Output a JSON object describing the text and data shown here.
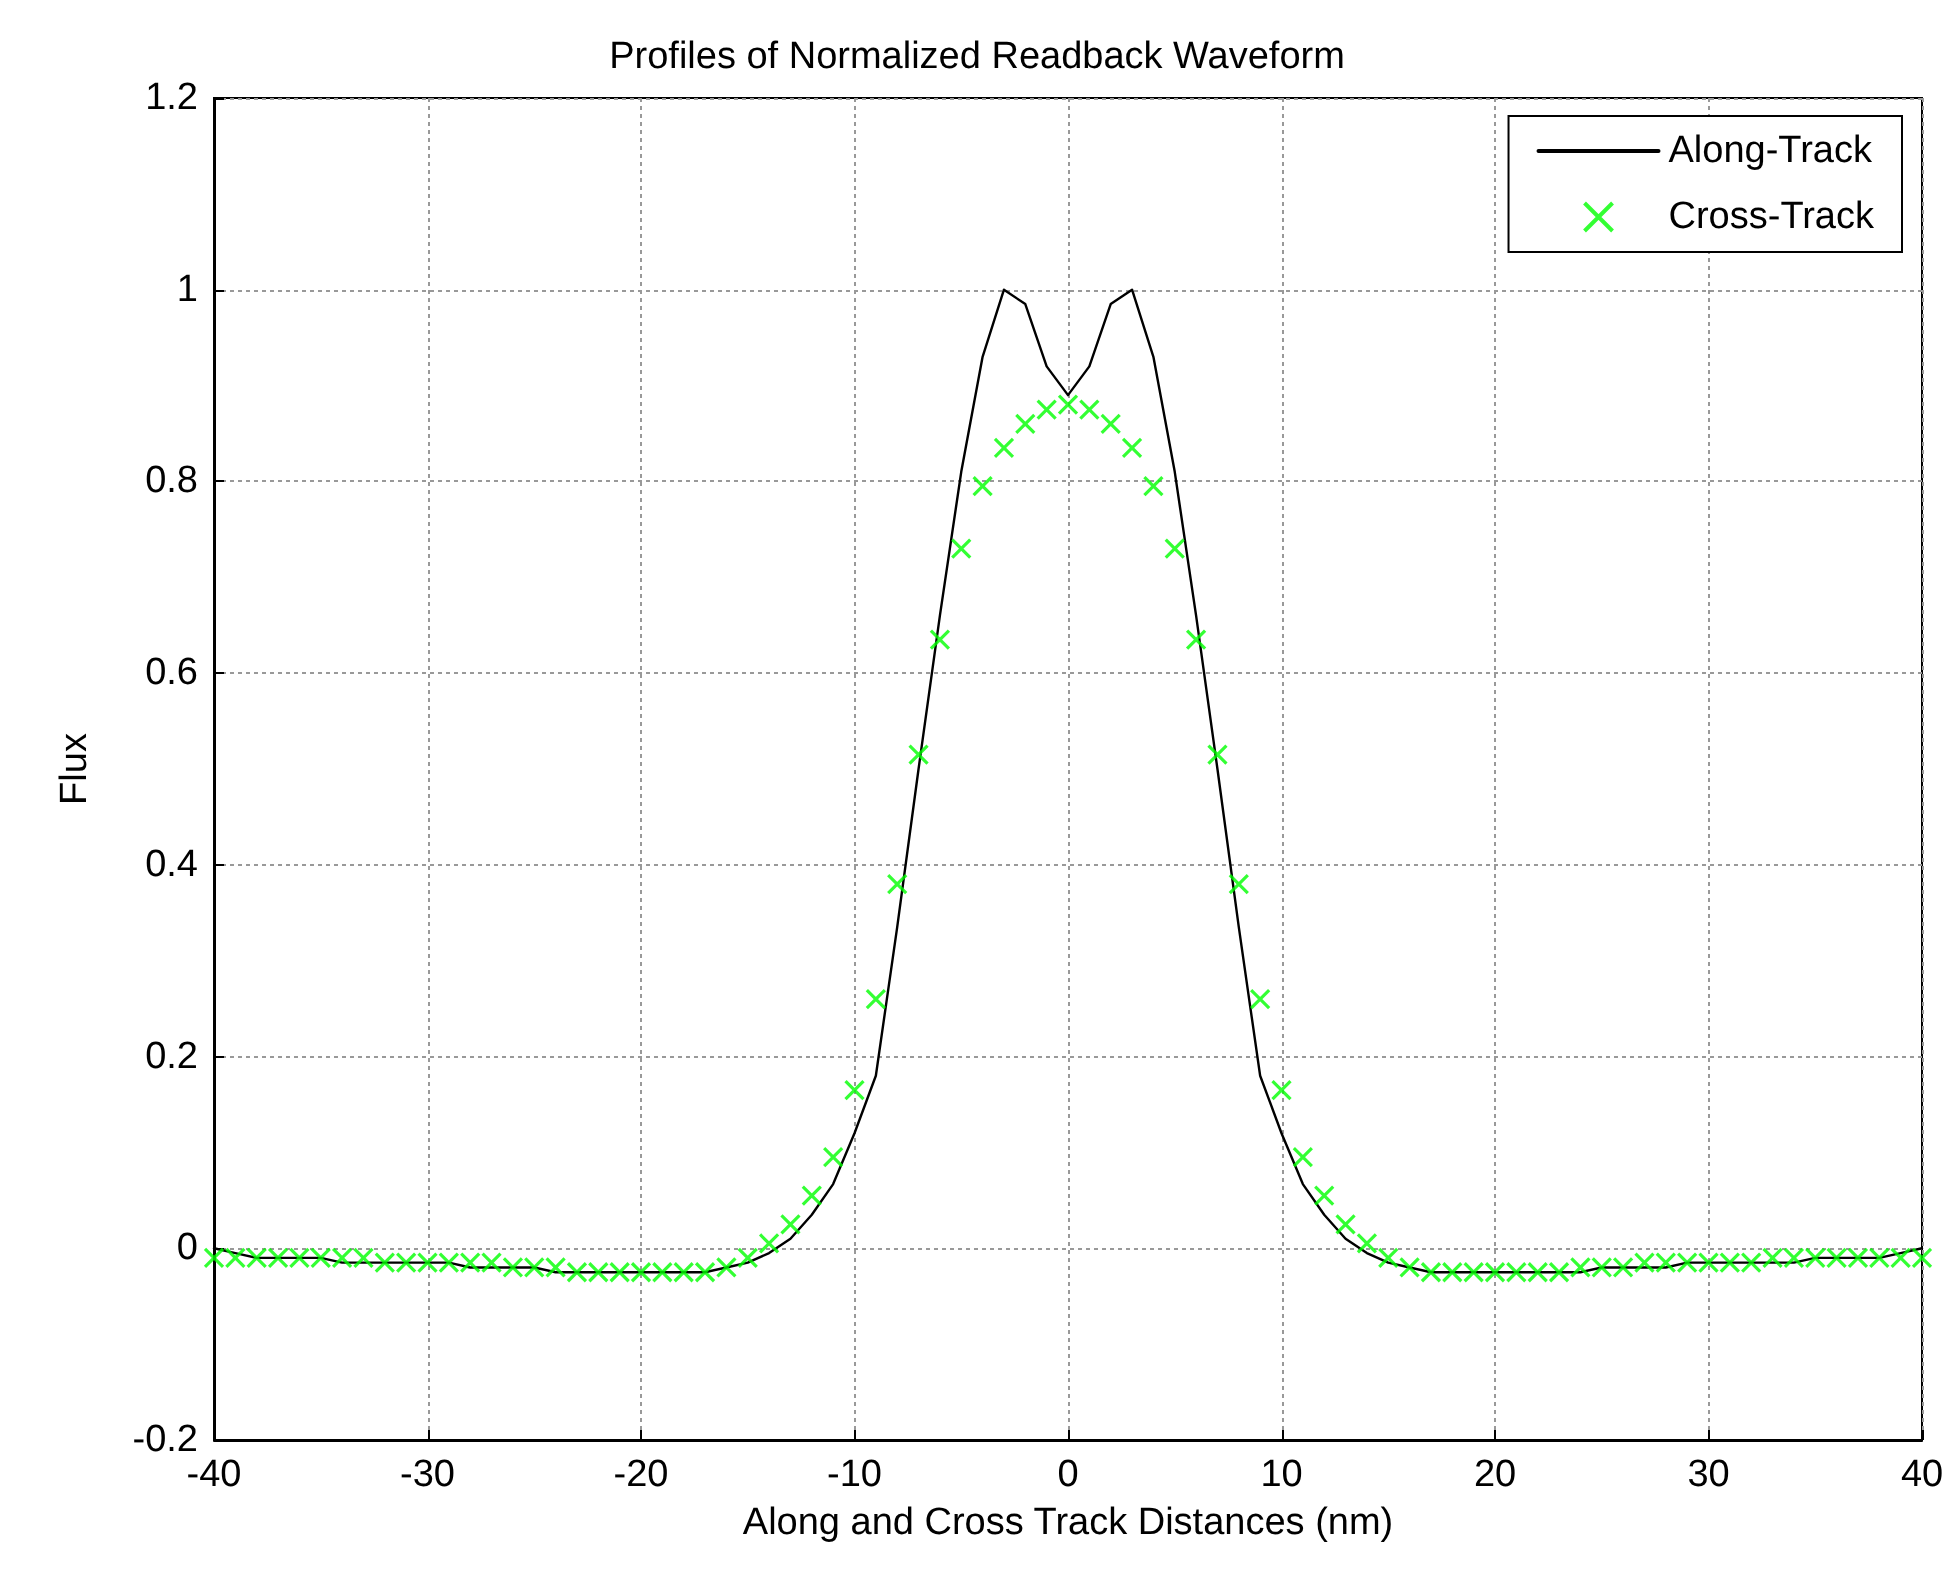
{
  "chart_data": {
    "type": "line",
    "title": "Profiles of Normalized Readback Waveform",
    "xlabel": "Along and Cross Track Distances (nm)",
    "ylabel": "Flux",
    "xlim": [
      -40,
      40
    ],
    "xticks": [
      -40,
      -30,
      -20,
      -10,
      0,
      10,
      20,
      30,
      40
    ],
    "ylim": [
      -0.2,
      1.2
    ],
    "yticks": [
      -0.2,
      0,
      0.2,
      0.4,
      0.6,
      0.8,
      1,
      1.2
    ],
    "grid": true,
    "legend": "top right",
    "series": [
      {
        "name": "Along-Track",
        "color": "#000000",
        "marker": "none",
        "line_style": "solid",
        "x": [
          -40,
          -39,
          -38,
          -37,
          -36,
          -35,
          -34,
          -33,
          -32,
          -31,
          -30,
          -29,
          -28,
          -27,
          -26,
          -25,
          -24,
          -23,
          -22,
          -21,
          -20,
          -19,
          -18,
          -17,
          -16,
          -15,
          -14,
          -13,
          -12,
          -11,
          -10,
          -9,
          -8,
          -7,
          -6,
          -5,
          -4,
          -3,
          -2,
          -1,
          0,
          1,
          2,
          3,
          4,
          5,
          6,
          7,
          8,
          9,
          10,
          11,
          12,
          13,
          14,
          15,
          16,
          17,
          18,
          19,
          20,
          21,
          22,
          23,
          24,
          25,
          26,
          27,
          28,
          29,
          30,
          31,
          32,
          33,
          34,
          35,
          36,
          37,
          38,
          39,
          40
        ],
        "values": [
          0,
          -0.005,
          -0.01,
          -0.01,
          -0.01,
          -0.01,
          -0.015,
          -0.015,
          -0.015,
          -0.015,
          -0.015,
          -0.015,
          -0.02,
          -0.02,
          -0.02,
          -0.02,
          -0.025,
          -0.025,
          -0.025,
          -0.025,
          -0.025,
          -0.025,
          -0.025,
          -0.025,
          -0.02,
          -0.015,
          -0.005,
          0.01,
          0.035,
          0.067,
          0.12,
          0.18,
          0.335,
          0.5,
          0.66,
          0.81,
          0.93,
          1,
          0.985,
          0.92,
          0.89,
          0.92,
          0.985,
          1,
          0.93,
          0.81,
          0.66,
          0.5,
          0.335,
          0.18,
          0.12,
          0.067,
          0.035,
          0.01,
          -0.005,
          -0.015,
          -0.02,
          -0.025,
          -0.025,
          -0.025,
          -0.025,
          -0.025,
          -0.025,
          -0.025,
          -0.025,
          -0.02,
          -0.02,
          -0.02,
          -0.02,
          -0.015,
          -0.015,
          -0.015,
          -0.015,
          -0.015,
          -0.015,
          -0.01,
          -0.01,
          -0.01,
          -0.01,
          -0.005,
          0
        ]
      },
      {
        "name": "Cross-Track",
        "type": "scatter",
        "color": "#00ff00",
        "marker": "cross",
        "x": [
          -40,
          -39,
          -38,
          -37,
          -36,
          -35,
          -34,
          -33,
          -32,
          -31,
          -30,
          -29,
          -28,
          -27,
          -26,
          -25,
          -24,
          -23,
          -22,
          -21,
          -20,
          -19,
          -18,
          -17,
          -16,
          -15,
          -14,
          -13,
          -12,
          -11,
          -10,
          -9,
          -8,
          -7,
          -6,
          -5,
          -4,
          -3,
          -2,
          -1,
          0,
          1,
          2,
          3,
          4,
          5,
          6,
          7,
          8,
          9,
          10,
          11,
          12,
          13,
          14,
          15,
          16,
          17,
          18,
          19,
          20,
          21,
          22,
          23,
          24,
          25,
          26,
          27,
          28,
          29,
          30,
          31,
          32,
          33,
          34,
          35,
          36,
          37,
          38,
          39,
          40
        ],
        "values": [
          -0.01,
          -0.01,
          -0.01,
          -0.01,
          -0.01,
          -0.01,
          -0.01,
          -0.01,
          -0.015,
          -0.015,
          -0.015,
          -0.015,
          -0.015,
          -0.015,
          -0.02,
          -0.02,
          -0.02,
          -0.025,
          -0.025,
          -0.025,
          -0.025,
          -0.025,
          -0.025,
          -0.025,
          -0.02,
          -0.01,
          0.005,
          0.025,
          0.055,
          0.095,
          0.165,
          0.26,
          0.38,
          0.515,
          0.635,
          0.73,
          0.795,
          0.835,
          0.86,
          0.875,
          0.88,
          0.875,
          0.86,
          0.835,
          0.795,
          0.73,
          0.635,
          0.515,
          0.38,
          0.26,
          0.165,
          0.095,
          0.055,
          0.025,
          0.005,
          -0.01,
          -0.02,
          -0.025,
          -0.025,
          -0.025,
          -0.025,
          -0.025,
          -0.025,
          -0.025,
          -0.02,
          -0.02,
          -0.02,
          -0.015,
          -0.015,
          -0.015,
          -0.015,
          -0.015,
          -0.015,
          -0.01,
          -0.01,
          -0.01,
          -0.01,
          -0.01,
          -0.01,
          -0.01,
          -0.01
        ]
      }
    ]
  }
}
